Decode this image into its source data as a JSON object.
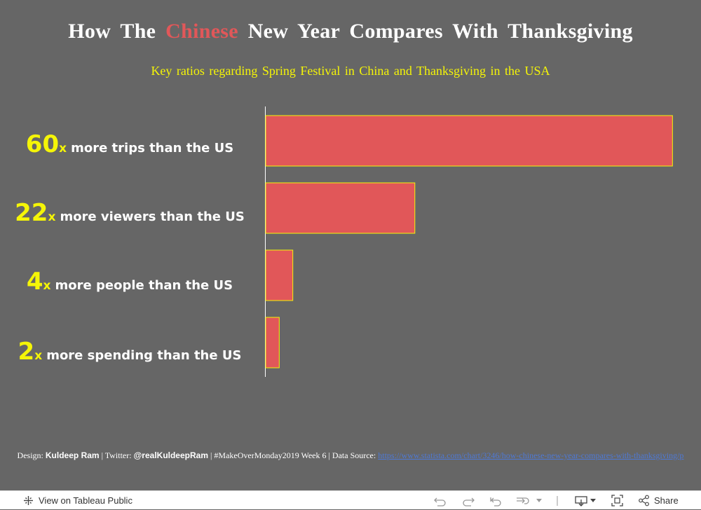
{
  "title": {
    "prefix": "How The",
    "highlight": "Chinese",
    "suffix": "New Year Compares With Thanksgiving"
  },
  "subtitle": "Key ratios regarding Spring Festival in China and Thanksgiving in the USA",
  "rows": [
    {
      "num": "60",
      "x": "x",
      "text": "more trips than the US"
    },
    {
      "num": "22",
      "x": "x",
      "text": "more viewers than the US"
    },
    {
      "num": "4",
      "x": "x",
      "text": "more people than the US"
    },
    {
      "num": "2",
      "x": "x",
      "text": "more spending than the US"
    }
  ],
  "chart_data": {
    "type": "bar",
    "orientation": "horizontal",
    "categories": [
      "60x more trips than the US",
      "22x more viewers than the US",
      "4x more people than the US",
      "2x more spending than the US"
    ],
    "values": [
      60,
      22,
      4,
      2
    ],
    "xlim": [
      0,
      61
    ],
    "bar_color": "#e15759",
    "bar_border": "#f5f507",
    "title": "How The Chinese New Year Compares With Thanksgiving",
    "subtitle": "Key ratios regarding Spring Festival in China and Thanksgiving in the USA",
    "grid": false,
    "xlabel": "",
    "ylabel": ""
  },
  "footer": {
    "design_label": "Design:",
    "designer": "Kuldeep Ram",
    "twitter_label": "| Twitter:",
    "twitter": "@realKuldeepRam",
    "event": "| #MakeOverMonday2019 Week 6 | Data Source:",
    "source_url": "https://www.statista.com/chart/3246/how-chinese-new-year-compares-with-thanksgiving/p"
  },
  "toolbar": {
    "view_label": "View on Tableau Public",
    "share_label": "Share"
  },
  "colors": {
    "background": "#666666",
    "accent": "#e15759",
    "highlight_text": "#f5f507"
  }
}
